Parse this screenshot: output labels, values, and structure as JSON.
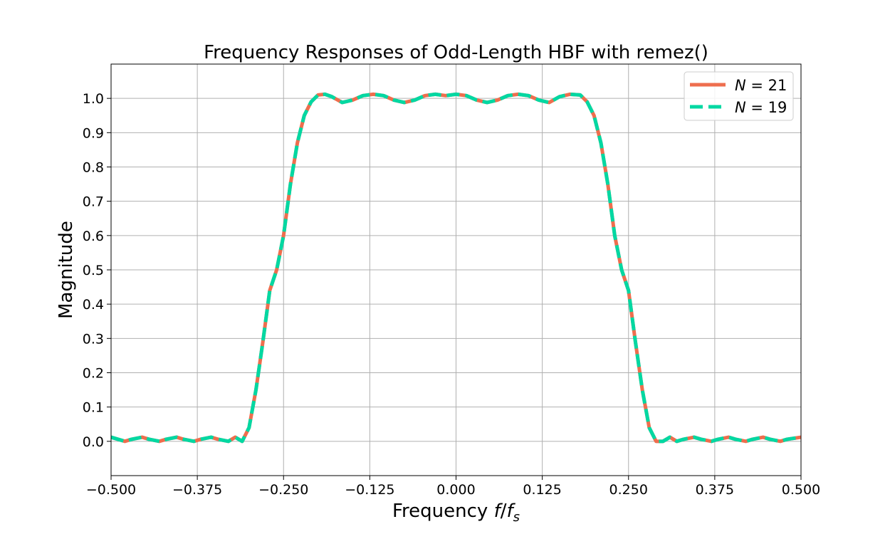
{
  "chart_data": {
    "type": "line",
    "title": "Frequency Responses of Odd-Length HBF with remez()",
    "xlabel": "Frequency f/f_s",
    "xlabel_parts": {
      "main": "Frequency ",
      "italic_f": "f",
      "slash": "/",
      "italic_fs": "f",
      "subscript": "s"
    },
    "ylabel": "Magnitude",
    "xlim": [
      -0.5,
      0.5
    ],
    "ylim": [
      -0.1,
      1.1
    ],
    "x_ticks": [
      -0.5,
      -0.375,
      -0.25,
      -0.125,
      0.0,
      0.125,
      0.25,
      0.375,
      0.5
    ],
    "x_tick_labels": [
      "−0.500",
      "−0.375",
      "−0.250",
      "−0.125",
      "0.000",
      "0.125",
      "0.250",
      "0.375",
      "0.500"
    ],
    "y_ticks": [
      0.0,
      0.1,
      0.2,
      0.3,
      0.4,
      0.5,
      0.6,
      0.7,
      0.8,
      0.9,
      1.0
    ],
    "y_tick_labels": [
      "0.0",
      "0.1",
      "0.2",
      "0.3",
      "0.4",
      "0.5",
      "0.6",
      "0.7",
      "0.8",
      "0.9",
      "1.0"
    ],
    "grid": true,
    "legend_position": "top-right",
    "series": [
      {
        "name": "N = 21",
        "label_parts": {
          "var": "N",
          "eq": " = ",
          "num": "21"
        },
        "color": "#EE6E4E",
        "style": "solid",
        "x": [
          -0.5,
          -0.48,
          -0.47,
          -0.455,
          -0.445,
          -0.43,
          -0.42,
          -0.405,
          -0.395,
          -0.38,
          -0.37,
          -0.355,
          -0.345,
          -0.33,
          -0.32,
          -0.31,
          -0.3,
          -0.29,
          -0.28,
          -0.27,
          -0.26,
          -0.25,
          -0.24,
          -0.23,
          -0.22,
          -0.21,
          -0.2,
          -0.19,
          -0.18,
          -0.165,
          -0.15,
          -0.135,
          -0.12,
          -0.105,
          -0.09,
          -0.075,
          -0.06,
          -0.045,
          -0.03,
          -0.015,
          0.0,
          0.015,
          0.03,
          0.045,
          0.06,
          0.075,
          0.09,
          0.105,
          0.12,
          0.135,
          0.15,
          0.165,
          0.18,
          0.19,
          0.2,
          0.21,
          0.22,
          0.23,
          0.24,
          0.25,
          0.26,
          0.27,
          0.28,
          0.29,
          0.3,
          0.31,
          0.32,
          0.33,
          0.345,
          0.355,
          0.37,
          0.38,
          0.395,
          0.405,
          0.42,
          0.43,
          0.445,
          0.455,
          0.47,
          0.48,
          0.5
        ],
        "y": [
          0.012,
          0.0,
          0.006,
          0.012,
          0.006,
          0.0,
          0.006,
          0.012,
          0.006,
          0.0,
          0.006,
          0.012,
          0.006,
          0.0,
          0.012,
          0.0,
          0.04,
          0.15,
          0.29,
          0.44,
          0.5,
          0.6,
          0.75,
          0.87,
          0.95,
          0.99,
          1.01,
          1.012,
          1.005,
          0.988,
          0.995,
          1.008,
          1.012,
          1.008,
          0.995,
          0.988,
          0.995,
          1.008,
          1.012,
          1.008,
          1.012,
          1.008,
          0.995,
          0.988,
          0.995,
          1.008,
          1.012,
          1.008,
          0.995,
          0.988,
          1.005,
          1.012,
          1.01,
          0.99,
          0.95,
          0.87,
          0.75,
          0.6,
          0.5,
          0.44,
          0.29,
          0.15,
          0.04,
          0.0,
          0.0,
          0.012,
          0.0,
          0.006,
          0.012,
          0.006,
          0.0,
          0.006,
          0.012,
          0.006,
          0.0,
          0.006,
          0.012,
          0.006,
          0.0,
          0.006,
          0.012
        ]
      },
      {
        "name": "N = 19",
        "label_parts": {
          "var": "N",
          "eq": " = ",
          "num": "19"
        },
        "color": "#00D8A2",
        "style": "dashed",
        "x": [
          -0.5,
          -0.48,
          -0.47,
          -0.455,
          -0.445,
          -0.43,
          -0.42,
          -0.405,
          -0.395,
          -0.38,
          -0.37,
          -0.355,
          -0.345,
          -0.33,
          -0.32,
          -0.31,
          -0.3,
          -0.29,
          -0.28,
          -0.27,
          -0.26,
          -0.25,
          -0.24,
          -0.23,
          -0.22,
          -0.21,
          -0.2,
          -0.19,
          -0.18,
          -0.165,
          -0.15,
          -0.135,
          -0.12,
          -0.105,
          -0.09,
          -0.075,
          -0.06,
          -0.045,
          -0.03,
          -0.015,
          0.0,
          0.015,
          0.03,
          0.045,
          0.06,
          0.075,
          0.09,
          0.105,
          0.12,
          0.135,
          0.15,
          0.165,
          0.18,
          0.19,
          0.2,
          0.21,
          0.22,
          0.23,
          0.24,
          0.25,
          0.26,
          0.27,
          0.28,
          0.29,
          0.3,
          0.31,
          0.32,
          0.33,
          0.345,
          0.355,
          0.37,
          0.38,
          0.395,
          0.405,
          0.42,
          0.43,
          0.445,
          0.455,
          0.47,
          0.48,
          0.5
        ],
        "y": [
          0.012,
          0.0,
          0.006,
          0.012,
          0.006,
          0.0,
          0.006,
          0.012,
          0.006,
          0.0,
          0.006,
          0.012,
          0.006,
          0.0,
          0.012,
          0.0,
          0.04,
          0.15,
          0.29,
          0.44,
          0.5,
          0.6,
          0.75,
          0.87,
          0.95,
          0.99,
          1.01,
          1.012,
          1.005,
          0.988,
          0.995,
          1.008,
          1.012,
          1.008,
          0.995,
          0.988,
          0.995,
          1.008,
          1.012,
          1.008,
          1.012,
          1.008,
          0.995,
          0.988,
          0.995,
          1.008,
          1.012,
          1.008,
          0.995,
          0.988,
          1.005,
          1.012,
          1.01,
          0.99,
          0.95,
          0.87,
          0.75,
          0.6,
          0.5,
          0.44,
          0.29,
          0.15,
          0.04,
          0.0,
          0.0,
          0.012,
          0.0,
          0.006,
          0.012,
          0.006,
          0.0,
          0.006,
          0.012,
          0.006,
          0.0,
          0.006,
          0.012,
          0.006,
          0.0,
          0.006,
          0.012
        ]
      }
    ]
  }
}
